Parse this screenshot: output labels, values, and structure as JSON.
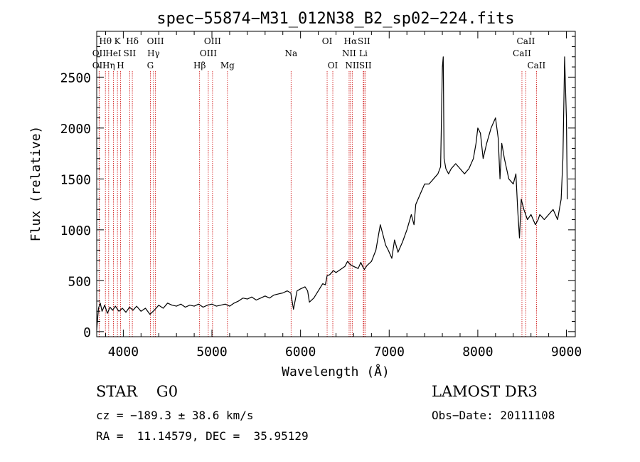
{
  "title": "spec−55874−M31_012N38_B2_sp02−224.fits",
  "chart_data": {
    "type": "line",
    "title": "spec−55874−M31_012N38_B2_sp02−224.fits",
    "xlabel": "Wavelength (Å)",
    "ylabel": "Flux (relative)",
    "xlim": [
      3700,
      9100
    ],
    "ylim": [
      -50,
      2950
    ],
    "xticks": [
      4000,
      5000,
      6000,
      7000,
      8000,
      9000
    ],
    "yticks": [
      0,
      500,
      1000,
      1500,
      2000,
      2500
    ],
    "series": [
      {
        "name": "flux",
        "x": [
          3700,
          3720,
          3740,
          3760,
          3790,
          3820,
          3850,
          3880,
          3910,
          3950,
          3990,
          4030,
          4070,
          4110,
          4150,
          4200,
          4250,
          4300,
          4350,
          4400,
          4450,
          4500,
          4550,
          4600,
          4650,
          4700,
          4750,
          4800,
          4850,
          4900,
          4950,
          5000,
          5050,
          5100,
          5150,
          5200,
          5250,
          5300,
          5350,
          5400,
          5450,
          5500,
          5550,
          5600,
          5650,
          5700,
          5750,
          5800,
          5850,
          5890,
          5920,
          5960,
          6000,
          6050,
          6080,
          6100,
          6150,
          6200,
          6250,
          6280,
          6300,
          6330,
          6370,
          6400,
          6450,
          6500,
          6530,
          6560,
          6600,
          6650,
          6680,
          6700,
          6720,
          6750,
          6800,
          6850,
          6880,
          6900,
          6930,
          6960,
          6990,
          7030,
          7060,
          7100,
          7150,
          7200,
          7250,
          7280,
          7300,
          7350,
          7400,
          7450,
          7500,
          7550,
          7580,
          7600,
          7610,
          7620,
          7640,
          7670,
          7700,
          7750,
          7800,
          7850,
          7900,
          7950,
          7980,
          8000,
          8030,
          8060,
          8100,
          8150,
          8200,
          8230,
          8250,
          8270,
          8300,
          8350,
          8400,
          8430,
          8450,
          8470,
          8490,
          8520,
          8560,
          8600,
          8650,
          8680,
          8700,
          8750,
          8800,
          8850,
          8900,
          8940,
          8960,
          8980,
          9000,
          9010
        ],
        "values": [
          20,
          230,
          280,
          200,
          260,
          180,
          240,
          210,
          250,
          200,
          230,
          190,
          240,
          210,
          250,
          200,
          230,
          170,
          210,
          260,
          230,
          280,
          260,
          250,
          270,
          240,
          260,
          250,
          270,
          240,
          260,
          270,
          250,
          260,
          270,
          250,
          280,
          300,
          330,
          320,
          340,
          310,
          330,
          350,
          330,
          360,
          370,
          380,
          400,
          380,
          220,
          400,
          420,
          440,
          400,
          290,
          330,
          400,
          470,
          460,
          550,
          560,
          600,
          580,
          610,
          640,
          690,
          660,
          640,
          620,
          680,
          640,
          610,
          650,
          690,
          800,
          950,
          1050,
          950,
          850,
          800,
          720,
          900,
          780,
          880,
          1000,
          1150,
          1050,
          1250,
          1350,
          1450,
          1450,
          1500,
          1550,
          1620,
          2600,
          2700,
          1700,
          1600,
          1550,
          1600,
          1650,
          1600,
          1550,
          1600,
          1700,
          1850,
          2000,
          1950,
          1700,
          1850,
          2000,
          2100,
          1900,
          1500,
          1850,
          1700,
          1500,
          1450,
          1550,
          1200,
          920,
          1300,
          1200,
          1100,
          1150,
          1050,
          1100,
          1150,
          1100,
          1150,
          1200,
          1100,
          1300,
          1700,
          2700,
          2100,
          1300
        ]
      }
    ],
    "lines": [
      {
        "label": "OII",
        "x": 3727,
        "row": 2
      },
      {
        "label": "Hθ",
        "x": 3798,
        "row": 1
      },
      {
        "label": "OII",
        "x": 3727,
        "row": 3
      },
      {
        "label": "Hη",
        "x": 3835,
        "row": 3
      },
      {
        "label": "K",
        "x": 3934,
        "row": 1
      },
      {
        "label": "HeI",
        "x": 3889,
        "row": 2
      },
      {
        "label": "H",
        "x": 3969,
        "row": 3
      },
      {
        "label": "SII",
        "x": 4072,
        "row": 2
      },
      {
        "label": "Hδ",
        "x": 4102,
        "row": 1
      },
      {
        "label": "OIII",
        "x": 4363,
        "row": 1
      },
      {
        "label": "Hγ",
        "x": 4341,
        "row": 2
      },
      {
        "label": "G",
        "x": 4305,
        "row": 3
      },
      {
        "label": "Hβ",
        "x": 4861,
        "row": 3
      },
      {
        "label": "OIII",
        "x": 5007,
        "row": 1
      },
      {
        "label": "OIII",
        "x": 4959,
        "row": 2
      },
      {
        "label": "Mg",
        "x": 5175,
        "row": 3
      },
      {
        "label": "Na",
        "x": 5893,
        "row": 2
      },
      {
        "label": "OI",
        "x": 6300,
        "row": 1
      },
      {
        "label": "OI",
        "x": 6364,
        "row": 3
      },
      {
        "label": "Hα",
        "x": 6563,
        "row": 1
      },
      {
        "label": "SII",
        "x": 6716,
        "row": 1
      },
      {
        "label": "NII",
        "x": 6548,
        "row": 2
      },
      {
        "label": "Li",
        "x": 6708,
        "row": 2
      },
      {
        "label": "NII",
        "x": 6583,
        "row": 3
      },
      {
        "label": "SII",
        "x": 6731,
        "row": 3
      },
      {
        "label": "CaII",
        "x": 8542,
        "row": 1
      },
      {
        "label": "CaII",
        "x": 8498,
        "row": 2
      },
      {
        "label": "CaII",
        "x": 8662,
        "row": 3
      }
    ]
  },
  "info": {
    "class_label": "STAR    G0",
    "survey": "LAMOST DR3",
    "cz": "cz = −189.3 ± 38.6 km/s",
    "obs_date": "Obs−Date: 20111108",
    "coords": "RA =  11.14579, DEC =  35.95129"
  },
  "colors": {
    "axis": "#000000",
    "spectrum": "#000000",
    "line_marker": "#cc0000"
  }
}
